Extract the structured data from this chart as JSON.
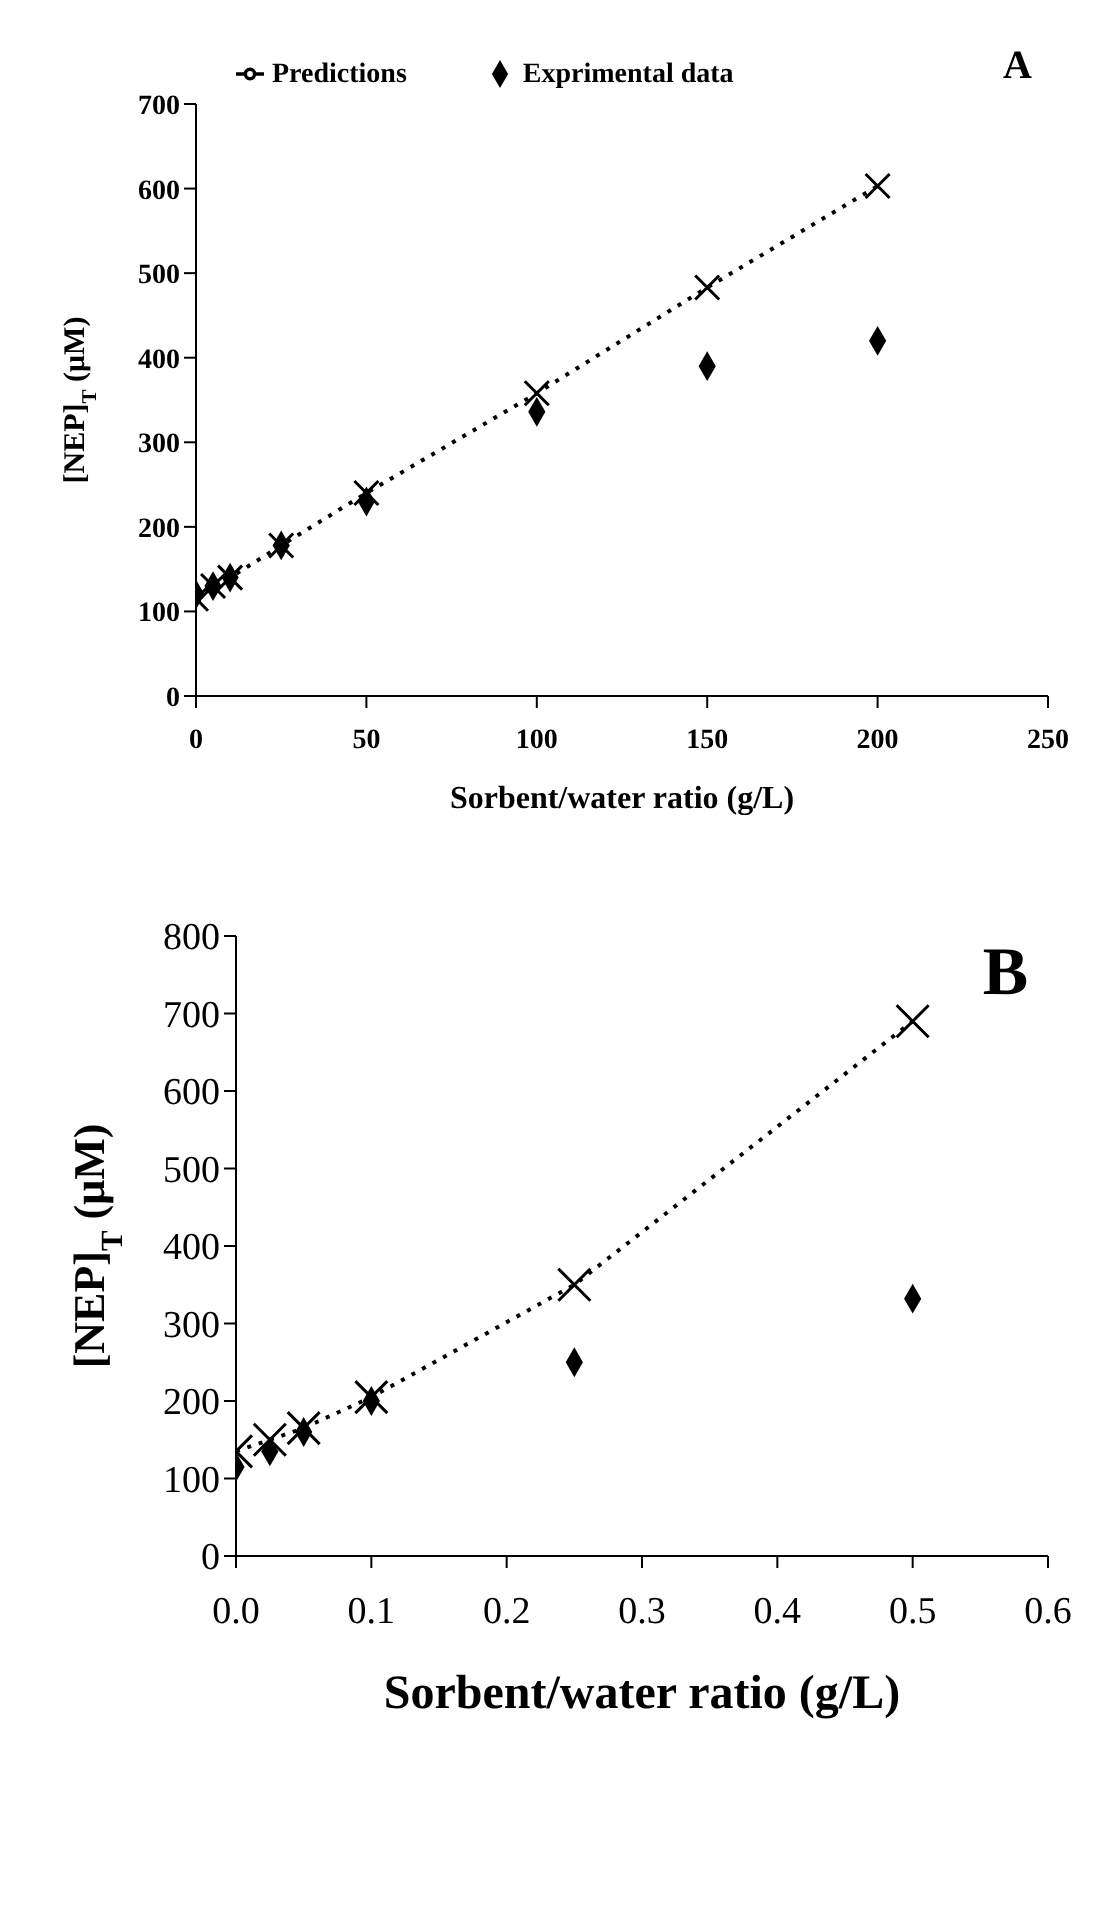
{
  "chart_data": [
    {
      "type": "scatter",
      "xlabel": "Sorbent/water ratio (g/L)",
      "ylabel": "[NEP]$_{T}$ (μM)",
      "annotations": [
        "A"
      ],
      "xlim": [
        0,
        250
      ],
      "xticks": [
        0,
        50,
        100,
        150,
        200,
        250
      ],
      "ylim": [
        0,
        700
      ],
      "yticks": [
        0,
        100,
        200,
        300,
        400,
        500,
        600,
        700
      ],
      "grid": false,
      "legend": "top left",
      "series": [
        {
          "name": "Predictions",
          "type": "line",
          "line_style": "dotted",
          "marker": "cross",
          "color": "#000000",
          "x": [
            0,
            5,
            10,
            25,
            50,
            100,
            150,
            200
          ],
          "values": [
            115,
            130,
            140,
            178,
            240,
            358,
            483,
            603
          ]
        },
        {
          "name": "Exprimental data",
          "type": "scatter",
          "marker": "diamond",
          "color": "#000000",
          "x": [
            0,
            5,
            10,
            25,
            50,
            100,
            150,
            200
          ],
          "values": [
            120,
            130,
            140,
            178,
            230,
            336,
            390,
            420
          ]
        }
      ]
    },
    {
      "type": "scatter",
      "xlabel": "Sorbent/water ratio (g/L)",
      "ylabel": "[NEP]$_{T}$ (μM)",
      "annotations": [
        "B"
      ],
      "xlim": [
        0,
        0.6
      ],
      "xticks": [
        {
          "value": 0,
          "label": "0.0"
        },
        0.1,
        0.2,
        0.3,
        0.4,
        0.5,
        0.6
      ],
      "ylim": [
        0,
        800
      ],
      "yticks": [
        0,
        100,
        200,
        300,
        400,
        500,
        600,
        700,
        800
      ],
      "grid": false,
      "series": [
        {
          "type": "line",
          "line_style": "dotted",
          "marker": "cross",
          "color": "#000000",
          "x": [
            0,
            0.025,
            0.05,
            0.1,
            0.25,
            0.5
          ],
          "values": [
            135,
            150,
            165,
            205,
            350,
            690
          ]
        },
        {
          "type": "scatter",
          "marker": "diamond",
          "color": "#000000",
          "x": [
            0,
            0.025,
            0.05,
            0.1,
            0.25,
            0.5
          ],
          "values": [
            115,
            135,
            160,
            200,
            250,
            332
          ]
        }
      ]
    }
  ]
}
